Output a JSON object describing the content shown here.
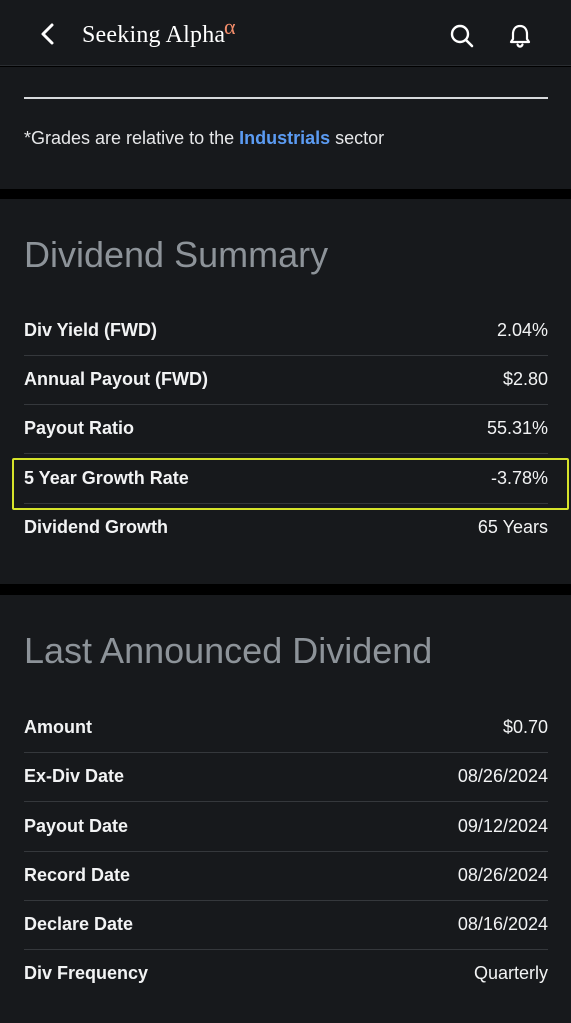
{
  "header": {
    "brand": "Seeking Alpha",
    "brand_alpha": "α",
    "icons": [
      "back-arrow-icon",
      "search-icon",
      "bell-icon"
    ]
  },
  "grades_note": {
    "prefix": "*Grades are relative to the ",
    "sector": "Industrials",
    "suffix": " sector"
  },
  "dividend_summary": {
    "title": "Dividend Summary",
    "rows": [
      {
        "label": "Div Yield (FWD)",
        "value": "2.04%"
      },
      {
        "label": "Annual Payout (FWD)",
        "value": "$2.80"
      },
      {
        "label": "Payout Ratio",
        "value": "55.31%"
      },
      {
        "label": "5 Year Growth Rate",
        "value": "-3.78%"
      },
      {
        "label": "Dividend Growth",
        "value": "65 Years"
      }
    ],
    "highlight_color": "#d6e32a"
  },
  "last_announced": {
    "title": "Last Announced Dividend",
    "rows": [
      {
        "label": "Amount",
        "value": "$0.70"
      },
      {
        "label": "Ex-Div Date",
        "value": "08/26/2024"
      },
      {
        "label": "Payout Date",
        "value": "09/12/2024"
      },
      {
        "label": "Record Date",
        "value": "08/26/2024"
      },
      {
        "label": "Declare Date",
        "value": "08/16/2024"
      },
      {
        "label": "Div Frequency",
        "value": "Quarterly"
      }
    ]
  },
  "colors": {
    "background": "#17191c",
    "accent_link": "#5b9bf2",
    "brand_alpha": "#f28c6a"
  }
}
